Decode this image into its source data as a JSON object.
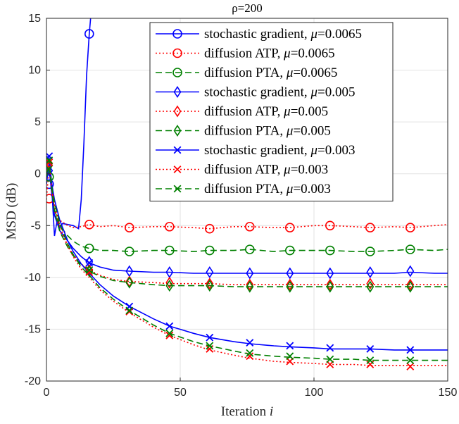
{
  "chart_data": {
    "type": "line",
    "title": "ρ=200",
    "xlabel": "Iteration i",
    "ylabel": "MSD (dB)",
    "xlim": [
      0,
      150
    ],
    "ylim": [
      -20,
      15
    ],
    "xticks": [
      "0",
      "50",
      "100",
      "150"
    ],
    "yticks": [
      "-20",
      "-15",
      "-10",
      "-5",
      "0",
      "5",
      "10",
      "15"
    ],
    "grid": true,
    "legend_position": "top-right",
    "series": [
      {
        "name": "stochastic gradient, μ=0.0065",
        "color": "#0000ff",
        "dash": "solid",
        "marker": "circle",
        "x": [
          0,
          1,
          2,
          3,
          4,
          5,
          6,
          8,
          10,
          12,
          13,
          14,
          15,
          16,
          17,
          18
        ],
        "y": [
          -1,
          1.2,
          -1.5,
          -6.0,
          -4.5,
          -5.2,
          -4.8,
          -4.9,
          -5.0,
          -5.3,
          -2.5,
          3.0,
          9.5,
          13.5,
          16.5,
          18
        ],
        "marker_x": [
          1,
          16
        ],
        "marker_y": [
          -1,
          13.5
        ]
      },
      {
        "name": "diffusion ATP, μ=0.0065",
        "color": "#ff0000",
        "dash": "dotted",
        "marker": "circle",
        "x": [
          0,
          1,
          2,
          3,
          5,
          8,
          10,
          13,
          16,
          20,
          25,
          31,
          40,
          46,
          55,
          61,
          70,
          76,
          85,
          91,
          100,
          106,
          115,
          121,
          130,
          136,
          145,
          150
        ],
        "y": [
          -2.5,
          0.8,
          -1.0,
          -3.5,
          -4.5,
          -5.0,
          -5.2,
          -5.1,
          -4.9,
          -5.1,
          -5.0,
          -5.2,
          -5.1,
          -5.1,
          -5.2,
          -5.3,
          -5.1,
          -5.1,
          -5.2,
          -5.2,
          -5.0,
          -5.0,
          -5.1,
          -5.2,
          -5.1,
          -5.2,
          -5.0,
          -4.9
        ],
        "marker_x": [
          1,
          16,
          31,
          46,
          61,
          76,
          91,
          106,
          121,
          136
        ],
        "marker_y": [
          -2.4,
          -4.9,
          -5.2,
          -5.1,
          -5.3,
          -5.1,
          -5.2,
          -5.0,
          -5.2,
          -5.2
        ]
      },
      {
        "name": "diffusion PTA, μ=0.0065",
        "color": "#008000",
        "dash": "dashed",
        "marker": "circle",
        "x": [
          0,
          1,
          2,
          3,
          5,
          8,
          10,
          13,
          16,
          20,
          25,
          31,
          40,
          46,
          55,
          61,
          70,
          76,
          85,
          91,
          100,
          106,
          115,
          121,
          130,
          136,
          145,
          150
        ],
        "y": [
          -0.3,
          0.5,
          -1.5,
          -3.5,
          -5.0,
          -6.0,
          -6.5,
          -7.0,
          -7.2,
          -7.4,
          -7.4,
          -7.5,
          -7.4,
          -7.4,
          -7.5,
          -7.4,
          -7.4,
          -7.3,
          -7.5,
          -7.4,
          -7.4,
          -7.4,
          -7.5,
          -7.5,
          -7.4,
          -7.3,
          -7.4,
          -7.3
        ],
        "marker_x": [
          1,
          16,
          31,
          46,
          61,
          76,
          91,
          106,
          121,
          136
        ],
        "marker_y": [
          -0.3,
          -7.2,
          -7.5,
          -7.4,
          -7.4,
          -7.3,
          -7.4,
          -7.4,
          -7.5,
          -7.3
        ]
      },
      {
        "name": "stochastic gradient, μ=0.005",
        "color": "#0000ff",
        "dash": "solid",
        "marker": "diamond",
        "x": [
          0,
          1,
          2,
          3,
          5,
          8,
          10,
          13,
          16,
          20,
          25,
          31,
          40,
          46,
          55,
          61,
          70,
          76,
          85,
          91,
          100,
          106,
          115,
          121,
          130,
          136,
          145,
          150
        ],
        "y": [
          0,
          0.5,
          -2.0,
          -4.0,
          -5.5,
          -6.5,
          -7.2,
          -8.0,
          -8.6,
          -9.0,
          -9.3,
          -9.4,
          -9.5,
          -9.5,
          -9.6,
          -9.6,
          -9.6,
          -9.6,
          -9.6,
          -9.6,
          -9.6,
          -9.6,
          -9.6,
          -9.6,
          -9.6,
          -9.5,
          -9.6,
          -9.6
        ],
        "marker_x": [
          1,
          16,
          31,
          46,
          61,
          76,
          91,
          106,
          121,
          136
        ],
        "marker_y": [
          0.3,
          -8.5,
          -9.4,
          -9.5,
          -9.5,
          -9.6,
          -9.6,
          -9.6,
          -9.5,
          -9.4
        ]
      },
      {
        "name": "diffusion ATP, μ=0.005",
        "color": "#ff0000",
        "dash": "dotted",
        "marker": "diamond",
        "x": [
          0,
          1,
          2,
          3,
          5,
          8,
          10,
          13,
          16,
          20,
          25,
          31,
          40,
          46,
          55,
          61,
          70,
          76,
          85,
          91,
          100,
          106,
          115,
          121,
          130,
          136,
          145,
          150
        ],
        "y": [
          0,
          1.0,
          -1.5,
          -3.5,
          -5.5,
          -7.0,
          -7.8,
          -8.7,
          -9.3,
          -9.8,
          -10.2,
          -10.4,
          -10.5,
          -10.6,
          -10.6,
          -10.6,
          -10.7,
          -10.7,
          -10.7,
          -10.7,
          -10.7,
          -10.7,
          -10.7,
          -10.7,
          -10.7,
          -10.7,
          -10.7,
          -10.7
        ],
        "marker_x": [
          1,
          16,
          31,
          46,
          61,
          76,
          91,
          106,
          121,
          136
        ],
        "marker_y": [
          1.0,
          -9.3,
          -10.4,
          -10.5,
          -10.6,
          -10.7,
          -10.7,
          -10.7,
          -10.6,
          -10.7
        ]
      },
      {
        "name": "diffusion PTA, μ=0.005",
        "color": "#008000",
        "dash": "dashed",
        "marker": "diamond",
        "x": [
          0,
          1,
          2,
          3,
          5,
          8,
          10,
          13,
          16,
          20,
          25,
          31,
          40,
          46,
          55,
          61,
          70,
          76,
          85,
          91,
          100,
          106,
          115,
          121,
          130,
          136,
          145,
          150
        ],
        "y": [
          0,
          0.8,
          -1.6,
          -3.6,
          -5.6,
          -7.1,
          -7.9,
          -8.8,
          -9.4,
          -9.9,
          -10.3,
          -10.5,
          -10.7,
          -10.8,
          -10.8,
          -10.8,
          -10.9,
          -10.9,
          -10.9,
          -10.9,
          -10.9,
          -10.9,
          -10.9,
          -10.9,
          -10.9,
          -10.9,
          -10.9,
          -10.9
        ],
        "marker_x": [
          1,
          16,
          31,
          46,
          61,
          76,
          91,
          106,
          121,
          136
        ],
        "marker_y": [
          0.8,
          -9.4,
          -10.5,
          -10.8,
          -10.8,
          -10.9,
          -10.9,
          -10.9,
          -10.9,
          -10.9
        ]
      },
      {
        "name": "stochastic gradient, μ=0.003",
        "color": "#0000ff",
        "dash": "solid",
        "marker": "x",
        "x": [
          0,
          1,
          2,
          3,
          5,
          8,
          10,
          13,
          16,
          20,
          25,
          31,
          40,
          46,
          55,
          61,
          70,
          76,
          85,
          91,
          100,
          106,
          115,
          121,
          130,
          136,
          145,
          150
        ],
        "y": [
          1.7,
          1.5,
          -1.0,
          -2.5,
          -4.5,
          -6.5,
          -7.5,
          -8.7,
          -9.6,
          -10.7,
          -11.8,
          -12.8,
          -14.0,
          -14.7,
          -15.4,
          -15.8,
          -16.2,
          -16.4,
          -16.6,
          -16.7,
          -16.8,
          -16.9,
          -16.9,
          -16.9,
          -17.0,
          -17.0,
          -17.0,
          -17.0
        ],
        "marker_x": [
          1,
          16,
          31,
          46,
          61,
          76,
          91,
          106,
          121,
          136
        ],
        "marker_y": [
          1.7,
          -8.6,
          -12.8,
          -14.7,
          -15.8,
          -16.3,
          -16.6,
          -16.8,
          -16.9,
          -17.0
        ]
      },
      {
        "name": "diffusion ATP, μ=0.003",
        "color": "#ff0000",
        "dash": "dotted",
        "marker": "x",
        "x": [
          0,
          1,
          2,
          3,
          5,
          8,
          10,
          13,
          16,
          20,
          25,
          31,
          40,
          46,
          55,
          61,
          70,
          76,
          85,
          91,
          100,
          106,
          115,
          121,
          130,
          136,
          145,
          150
        ],
        "y": [
          1.3,
          1.1,
          -1.5,
          -3.0,
          -5.0,
          -7.0,
          -8.0,
          -9.2,
          -10.0,
          -11.2,
          -12.3,
          -13.4,
          -14.8,
          -15.6,
          -16.5,
          -17.0,
          -17.5,
          -17.8,
          -18.1,
          -18.2,
          -18.3,
          -18.4,
          -18.4,
          -18.5,
          -18.5,
          -18.5,
          -18.5,
          -18.5
        ],
        "marker_x": [
          1,
          16,
          31,
          46,
          61,
          76,
          91,
          106,
          121,
          136
        ],
        "marker_y": [
          1.1,
          -9.5,
          -13.3,
          -15.6,
          -16.9,
          -17.6,
          -18.1,
          -18.4,
          -18.4,
          -18.6
        ]
      },
      {
        "name": "diffusion PTA, μ=0.003",
        "color": "#008000",
        "dash": "dashed",
        "marker": "x",
        "x": [
          0,
          1,
          2,
          3,
          5,
          8,
          10,
          13,
          16,
          20,
          25,
          31,
          40,
          46,
          55,
          61,
          70,
          76,
          85,
          91,
          100,
          106,
          115,
          121,
          130,
          136,
          145,
          150
        ],
        "y": [
          1.5,
          1.3,
          -1.3,
          -2.8,
          -4.8,
          -6.8,
          -7.8,
          -9.0,
          -9.8,
          -11.0,
          -12.1,
          -13.2,
          -14.6,
          -15.4,
          -16.2,
          -16.6,
          -17.1,
          -17.4,
          -17.6,
          -17.7,
          -17.8,
          -17.9,
          -17.9,
          -18.0,
          -18.0,
          -18.0,
          -18.0,
          -18.0
        ],
        "marker_x": [
          1,
          16,
          31,
          46,
          61,
          76,
          91,
          106,
          121,
          136
        ],
        "marker_y": [
          1.3,
          -9.3,
          -13.2,
          -15.4,
          -16.6,
          -17.3,
          -17.6,
          -17.9,
          -18.0,
          -18.0
        ]
      }
    ]
  }
}
